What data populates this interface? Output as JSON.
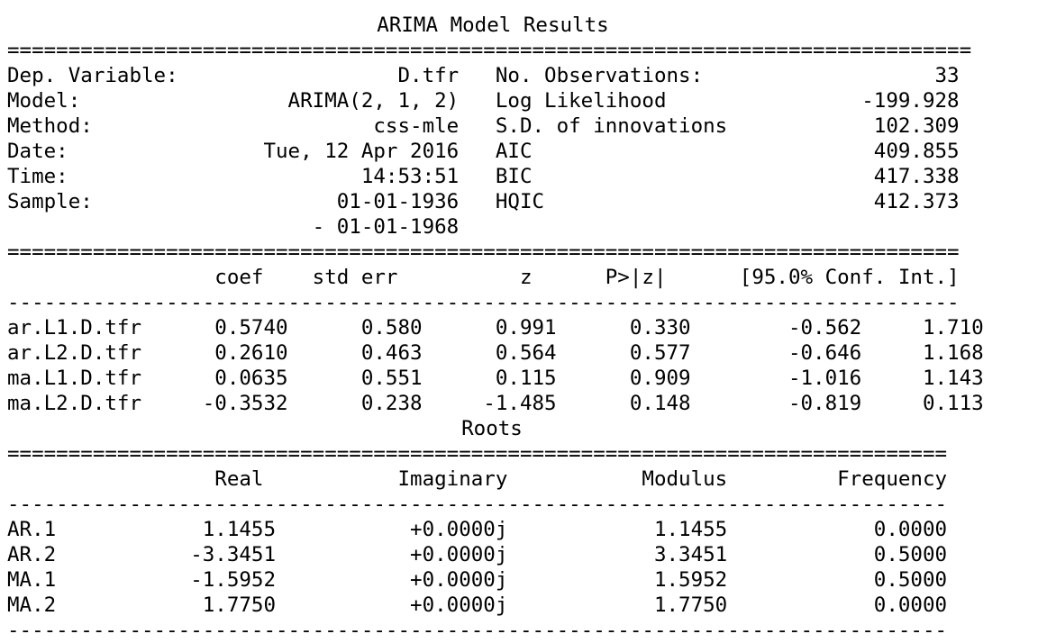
{
  "top_mark": "'",
  "title": "ARIMA Model Results",
  "rules": {
    "header_double": "===============================================================================",
    "coef_double": "==============================================================================",
    "coef_single": "------------------------------------------------------------------------------",
    "roots_double": "=============================================================================",
    "roots_single": "-----------------------------------------------------------------------------"
  },
  "summary_lines": [
    "Dep. Variable:                  D.tfr   No. Observations:                   33",
    "Model:                 ARIMA(2, 1, 2)   Log Likelihood                -199.928",
    "Method:                       css-mle   S.D. of innovations            102.309",
    "Date:                Tue, 12 Apr 2016   AIC                            409.855",
    "Time:                        14:53:51   BIC                            417.338",
    "Sample:                    01-01-1936   HQIC                           412.373",
    "                         - 01-01-1968"
  ],
  "coef_header": "                 coef    std err          z      P>|z|      [95.0% Conf. Int.]",
  "coef_rows": [
    "ar.L1.D.tfr      0.5740      0.580      0.991      0.330        -0.562     1.710",
    "ar.L2.D.tfr      0.2610      0.463      0.564      0.577        -0.646     1.168",
    "ma.L1.D.tfr      0.0635      0.551      0.115      0.909        -1.016     1.143",
    "ma.L2.D.tfr     -0.3532      0.238     -1.485      0.148        -0.819     0.113"
  ],
  "roots_title": "Roots",
  "roots_header": "                 Real           Imaginary           Modulus         Frequency",
  "roots_rows": [
    "AR.1            1.1455           +0.0000j            1.1455            0.0000",
    "AR.2           -3.3451           +0.0000j            3.3451            0.5000",
    "MA.1           -1.5952           +0.0000j            1.5952            0.5000",
    "MA.2            1.7750           +0.0000j            1.7750            0.0000"
  ]
}
